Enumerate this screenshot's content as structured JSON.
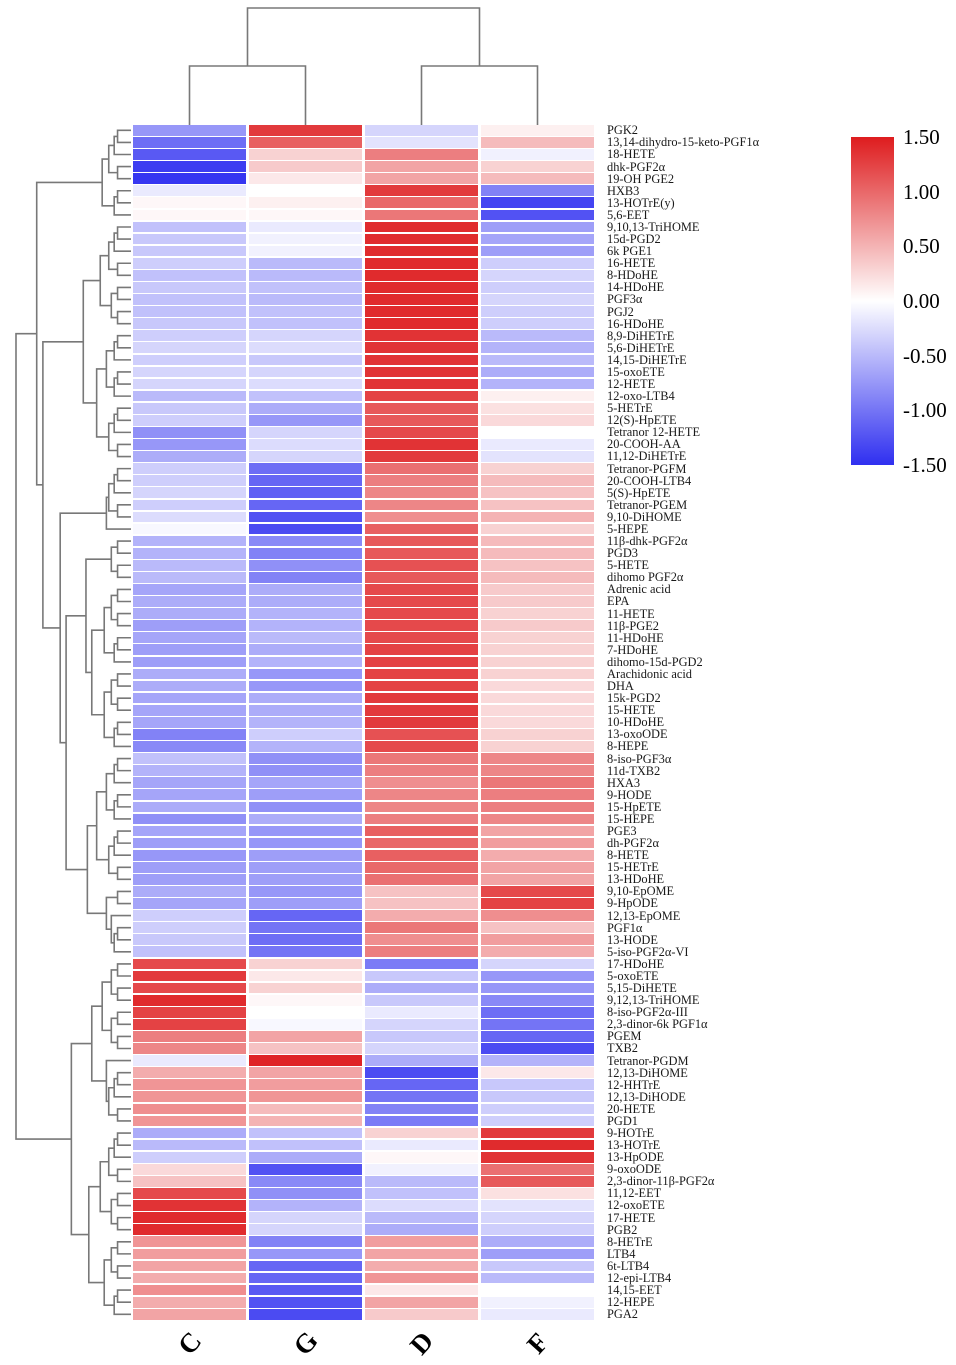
{
  "chart_data": {
    "type": "heatmap",
    "title": "",
    "columns": [
      "C",
      "G",
      "D",
      "F"
    ],
    "rows": [
      "PGK2",
      "13,14-dihydro-15-keto-PGF1α",
      "18-HETE",
      "dhk-PGF2α",
      "19-OH PGE2",
      "HXB3",
      "13-HOTrE(y)",
      "5,6-EET",
      "9,10,13-TriHOME",
      "15d-PGD2",
      "6k PGE1",
      "16-HETE",
      "8-HDoHE",
      "14-HDoHE",
      "PGF3α",
      "PGJ2",
      "16-HDoHE",
      "8,9-DiHETrE",
      "5,6-DiHETrE",
      "14,15-DiHETrE",
      "15-oxoETE",
      "12-HETE",
      "12-oxo-LTB4",
      "5-HETrE",
      "12(S)-HpETE",
      "Tetranor 12-HETE",
      "20-COOH-AA",
      "11,12-DiHETrE",
      "Tetranor-PGFM",
      "20-COOH-LTB4",
      "5(S)-HpETE",
      "Tetranor-PGEM",
      "9,10-DiHOME",
      "5-HEPE",
      "11β-dhk-PGF2α",
      "PGD3",
      "5-HETE",
      "dihomo PGF2α",
      "Adrenic acid",
      "EPA",
      "11-HETE",
      "11β-PGE2",
      "11-HDoHE",
      "7-HDoHE",
      "dihomo-15d-PGD2",
      "Arachidonic acid",
      "DHA",
      "15k-PGD2",
      "15-HETE",
      "10-HDoHE",
      "13-oxoODE",
      "8-HEPE",
      "8-iso-PGF3α",
      "11d-TXB2",
      "HXA3",
      "9-HODE",
      "15-HpETE",
      "15-HEPE",
      "PGE3",
      "dh-PGF2α",
      "8-HETE",
      "15-HETrE",
      "13-HDoHE",
      "9,10-EpOME",
      "9-HpODE",
      "12,13-EpOME",
      "PGF1α",
      "13-HODE",
      "5-iso-PGF2α-VI",
      "17-HDoHE",
      "5-oxoETE",
      "5,15-DiHETE",
      "9,12,13-TriHOME",
      "8-iso-PGF2α-III",
      "2,3-dinor-6k PGF1α",
      "PGEM",
      "TXB2",
      "Tetranor-PGDM",
      "12,13-DiHOME",
      "12-HHTrE",
      "12,13-DiHODE",
      "20-HETE",
      "PGD1",
      "9-HOTrE",
      "13-HOTrE",
      "13-HpODE",
      "9-oxoODE",
      "2,3-dinor-11β-PGF2α",
      "11,12-EET",
      "12-oxoETE",
      "17-HETE",
      "PGB2",
      "8-HETrE",
      "LTB4",
      "6t-LTB4",
      "12-epi-LTB4",
      "14,15-EET",
      "12-HEPE",
      "PGA2"
    ],
    "values": [
      [
        -0.75,
        1.3,
        -0.3,
        0.1
      ],
      [
        -1.05,
        1.05,
        -0.2,
        0.45
      ],
      [
        -1.2,
        0.3,
        0.85,
        -0.1
      ],
      [
        -1.4,
        0.35,
        0.6,
        0.3
      ],
      [
        -1.45,
        0.15,
        0.6,
        0.45
      ],
      [
        -0.15,
        0.0,
        1.3,
        -0.9
      ],
      [
        0.05,
        0.1,
        1.0,
        -1.35
      ],
      [
        0.05,
        0.05,
        0.9,
        -1.25
      ],
      [
        -0.45,
        -0.15,
        1.4,
        -0.7
      ],
      [
        -0.4,
        -0.1,
        1.4,
        -0.65
      ],
      [
        -0.4,
        -0.1,
        1.4,
        -0.7
      ],
      [
        -0.35,
        -0.5,
        1.4,
        -0.35
      ],
      [
        -0.45,
        -0.5,
        1.4,
        -0.3
      ],
      [
        -0.4,
        -0.45,
        1.4,
        -0.35
      ],
      [
        -0.45,
        -0.5,
        1.4,
        -0.3
      ],
      [
        -0.45,
        -0.45,
        1.4,
        -0.35
      ],
      [
        -0.4,
        -0.45,
        1.4,
        -0.35
      ],
      [
        -0.35,
        -0.3,
        1.35,
        -0.5
      ],
      [
        -0.3,
        -0.25,
        1.35,
        -0.55
      ],
      [
        -0.35,
        -0.4,
        1.35,
        -0.5
      ],
      [
        -0.3,
        -0.3,
        1.35,
        -0.6
      ],
      [
        -0.3,
        -0.25,
        1.35,
        -0.55
      ],
      [
        -0.5,
        -0.45,
        1.25,
        0.1
      ],
      [
        -0.4,
        -0.6,
        1.1,
        0.2
      ],
      [
        -0.35,
        -0.75,
        1.1,
        0.25
      ],
      [
        -0.8,
        -0.3,
        1.2,
        0.0
      ],
      [
        -0.75,
        -0.25,
        1.35,
        -0.15
      ],
      [
        -0.6,
        -0.3,
        1.3,
        -0.2
      ],
      [
        -0.35,
        -1.05,
        0.95,
        0.3
      ],
      [
        -0.35,
        -1.1,
        0.85,
        0.45
      ],
      [
        -0.3,
        -1.15,
        0.8,
        0.4
      ],
      [
        -0.35,
        -1.1,
        0.8,
        0.4
      ],
      [
        -0.25,
        -1.25,
        0.75,
        0.5
      ],
      [
        -0.05,
        -1.3,
        1.05,
        0.3
      ],
      [
        -0.55,
        -0.85,
        1.1,
        0.45
      ],
      [
        -0.55,
        -0.9,
        1.1,
        0.45
      ],
      [
        -0.5,
        -0.8,
        1.15,
        0.4
      ],
      [
        -0.5,
        -0.9,
        1.1,
        0.45
      ],
      [
        -0.65,
        -0.6,
        1.2,
        0.35
      ],
      [
        -0.6,
        -0.6,
        1.2,
        0.35
      ],
      [
        -0.6,
        -0.55,
        1.2,
        0.3
      ],
      [
        -0.7,
        -0.55,
        1.2,
        0.35
      ],
      [
        -0.65,
        -0.5,
        1.2,
        0.3
      ],
      [
        -0.7,
        -0.6,
        1.25,
        0.3
      ],
      [
        -0.7,
        -0.55,
        1.25,
        0.3
      ],
      [
        -0.6,
        -0.75,
        1.25,
        0.3
      ],
      [
        -0.6,
        -0.75,
        1.25,
        0.25
      ],
      [
        -0.65,
        -0.6,
        1.3,
        0.25
      ],
      [
        -0.65,
        -0.6,
        1.3,
        0.25
      ],
      [
        -0.65,
        -0.55,
        1.3,
        0.25
      ],
      [
        -0.9,
        -0.35,
        1.15,
        0.3
      ],
      [
        -0.85,
        -0.55,
        1.2,
        0.3
      ],
      [
        -0.45,
        -0.8,
        0.9,
        0.8
      ],
      [
        -0.55,
        -0.8,
        0.85,
        0.8
      ],
      [
        -0.65,
        -0.65,
        0.75,
        0.9
      ],
      [
        -0.65,
        -0.7,
        0.8,
        0.85
      ],
      [
        -0.6,
        -0.8,
        0.8,
        0.85
      ],
      [
        -0.8,
        -0.6,
        0.85,
        0.8
      ],
      [
        -0.65,
        -0.75,
        1.05,
        0.6
      ],
      [
        -0.7,
        -0.75,
        1.0,
        0.65
      ],
      [
        -0.75,
        -0.7,
        1.05,
        0.55
      ],
      [
        -0.7,
        -0.7,
        1.0,
        0.6
      ],
      [
        -0.7,
        -0.7,
        0.95,
        0.6
      ],
      [
        -0.6,
        -0.75,
        0.4,
        1.2
      ],
      [
        -0.65,
        -0.7,
        0.4,
        1.25
      ],
      [
        -0.35,
        -1.1,
        0.55,
        0.75
      ],
      [
        -0.35,
        -1.0,
        0.9,
        0.4
      ],
      [
        -0.4,
        -1.05,
        0.75,
        0.65
      ],
      [
        -0.45,
        -1.0,
        0.85,
        0.55
      ],
      [
        1.2,
        0.3,
        -0.95,
        -0.3
      ],
      [
        1.3,
        0.15,
        -0.4,
        -0.75
      ],
      [
        1.2,
        0.3,
        -0.6,
        -0.75
      ],
      [
        1.4,
        0.05,
        -0.4,
        -0.85
      ],
      [
        1.25,
        0.0,
        -0.15,
        -1.05
      ],
      [
        1.25,
        -0.05,
        -0.3,
        -1.0
      ],
      [
        0.85,
        0.6,
        -0.4,
        -1.1
      ],
      [
        0.8,
        0.4,
        -0.3,
        -1.3
      ],
      [
        -0.15,
        1.45,
        -0.6,
        -0.55
      ],
      [
        0.55,
        0.6,
        -1.3,
        0.15
      ],
      [
        0.7,
        0.65,
        -1.1,
        -0.4
      ],
      [
        0.7,
        0.7,
        -1.0,
        -0.4
      ],
      [
        0.75,
        0.45,
        -0.9,
        -0.35
      ],
      [
        0.7,
        0.5,
        -0.95,
        -0.35
      ],
      [
        -0.6,
        -0.45,
        0.3,
        1.3
      ],
      [
        -0.5,
        -0.45,
        -0.15,
        1.4
      ],
      [
        -0.35,
        -0.6,
        0.05,
        1.35
      ],
      [
        0.25,
        -1.25,
        -0.1,
        0.95
      ],
      [
        0.4,
        -0.85,
        -0.5,
        1.1
      ],
      [
        1.2,
        -0.8,
        -0.45,
        0.2
      ],
      [
        1.35,
        -0.55,
        -0.25,
        -0.2
      ],
      [
        1.4,
        -0.3,
        -0.5,
        -0.3
      ],
      [
        1.4,
        -0.3,
        -0.6,
        -0.35
      ],
      [
        0.7,
        -0.9,
        0.65,
        -0.6
      ],
      [
        0.65,
        -0.75,
        0.6,
        -0.7
      ],
      [
        0.6,
        -1.1,
        0.55,
        -0.4
      ],
      [
        0.55,
        -1.1,
        0.7,
        -0.5
      ],
      [
        0.75,
        -1.2,
        0.15,
        0.0
      ],
      [
        0.55,
        -1.25,
        0.6,
        -0.1
      ],
      [
        0.6,
        -1.3,
        0.35,
        -0.15
      ]
    ],
    "vmin": -1.5,
    "vmax": 1.5,
    "colorbar": {
      "ticks": [
        "1.50",
        "1.00",
        "0.50",
        "0.00",
        "-0.50",
        "-1.00",
        "-1.50"
      ],
      "position": "right",
      "color_max": "#de1c1e",
      "color_mid": "#ffffff",
      "color_min": "#2f2ff0"
    },
    "column_dendrogram": {
      "clusters": [
        [
          "C",
          "G"
        ],
        [
          "D",
          "F"
        ]
      ]
    },
    "row_dendrogram": true,
    "dendrogram_color": "#787878",
    "grid": false
  }
}
